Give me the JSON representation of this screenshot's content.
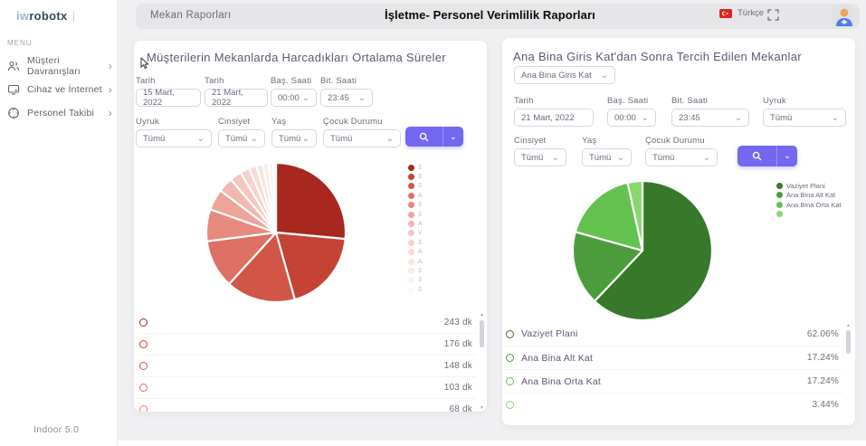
{
  "accent_color": "#7367f0",
  "sidebar": {
    "logo_prefix": "iw",
    "logo_suffix": "robotx",
    "logo_divider": "|",
    "menu_label": "MENU",
    "items": [
      {
        "label": "Müşteri Davranışları",
        "icon": "people-icon",
        "chevron": "›"
      },
      {
        "label": "Cihaz ve İnternet",
        "icon": "device-icon",
        "chevron": "›"
      },
      {
        "label": "Personel Takibi",
        "icon": "tracking-icon",
        "chevron": "›"
      }
    ],
    "footer": "Indoor 5.0"
  },
  "header": {
    "tab": "Mekan Raporları",
    "title": "İşletme- Personel Verimlilik Raporları",
    "language": "Türkçe"
  },
  "left_panel": {
    "title": "Müşterilerin Mekanlarda Harcadıkları Ortalama Süreler",
    "filters_row1": [
      {
        "label": "Tarih",
        "value": "15 Mart, 2022",
        "type": "text"
      },
      {
        "label": "Tarih",
        "value": "21 Mart, 2022",
        "type": "text"
      },
      {
        "label": "Baş. Saati",
        "value": "00:00",
        "type": "select"
      },
      {
        "label": "Bit. Saati",
        "value": "23:45",
        "type": "select"
      }
    ],
    "filters_row2": [
      {
        "label": "Uyruk",
        "value": "Tümü",
        "type": "select"
      },
      {
        "label": "Cinsiyet",
        "value": "Tümü",
        "type": "select"
      },
      {
        "label": "Yaş",
        "value": "Tümü",
        "type": "select"
      },
      {
        "label": "Çocuk Durumu",
        "value": "Tümü",
        "type": "select"
      }
    ],
    "list": [
      {
        "label": "",
        "value": "243 dk"
      },
      {
        "label": "",
        "value": "176 dk"
      },
      {
        "label": "",
        "value": "148 dk"
      },
      {
        "label": "",
        "value": "103 dk"
      },
      {
        "label": "",
        "value": "68 dk"
      },
      {
        "label": "",
        "value": ""
      }
    ]
  },
  "right_panel": {
    "title": "Ana Bina Giris Kat'dan Sonra Tercih Edilen Mekanlar",
    "location_select": {
      "value": "Ana Bina Giris Kat",
      "type": "select"
    },
    "filters_row1": [
      {
        "label": "Tarih",
        "value": "21 Mart, 2022",
        "type": "text"
      },
      {
        "label": "Baş. Saati",
        "value": "00:00",
        "type": "select"
      },
      {
        "label": "Bit. Saati",
        "value": "23:45",
        "type": "select"
      },
      {
        "label": "Uyruk",
        "value": "Tümü",
        "type": "select"
      }
    ],
    "filters_row2": [
      {
        "label": "Cinsiyet",
        "value": "Tümü",
        "type": "select"
      },
      {
        "label": "Yaş",
        "value": "Tümü",
        "type": "select"
      },
      {
        "label": "Çocuk Durumu",
        "value": "Tümü",
        "type": "select"
      }
    ],
    "list": [
      {
        "label": "Vaziyet Plani",
        "value": "62.06%"
      },
      {
        "label": "Ana Bina Alt Kat",
        "value": "17.24%"
      },
      {
        "label": "Ana Bina Orta Kat",
        "value": "17.24%"
      },
      {
        "label": "",
        "value": "3.44%"
      }
    ]
  },
  "chart_data": [
    {
      "type": "pie",
      "title": "Müşterilerin Mekanlarda Harcadıkları Ortalama Süreler",
      "unit": "dk",
      "labels": [
        "3",
        "3",
        "3",
        "A",
        "3",
        "3",
        "A",
        "V",
        "3",
        "A",
        "A",
        "3",
        "3",
        "3"
      ],
      "values": [
        243,
        176,
        148,
        103,
        68,
        45,
        32,
        25,
        20,
        16,
        14,
        12,
        9,
        7
      ],
      "labeled_values": [
        243,
        176,
        148,
        103,
        68
      ],
      "note": "legend labels are truncated in the UI; slices 6-14 estimated from slice angles",
      "colors": [
        "#a8281f",
        "#c44335",
        "#d25648",
        "#dd6f63",
        "#e68a80",
        "#eea39b",
        "#f3b7b1",
        "#f6c5c0",
        "#f8d0cc",
        "#f9dad7",
        "#fae3e0",
        "#fbebe9",
        "#fdf2f1",
        "#fef7f6"
      ],
      "legend_position": "right"
    },
    {
      "type": "pie",
      "title": "Ana Bina Giris Kat'dan Sonra Tercih Edilen Mekanlar",
      "unit": "%",
      "labels": [
        "Vaziyet Plani",
        "Ana Bina Alt Kat",
        "Ana Bina Orta Kat",
        ""
      ],
      "values": [
        62.06,
        17.24,
        17.24,
        3.44
      ],
      "colors": [
        "#37782b",
        "#4c9c3d",
        "#63c24f",
        "#86da6b"
      ],
      "legend_position": "right"
    }
  ]
}
